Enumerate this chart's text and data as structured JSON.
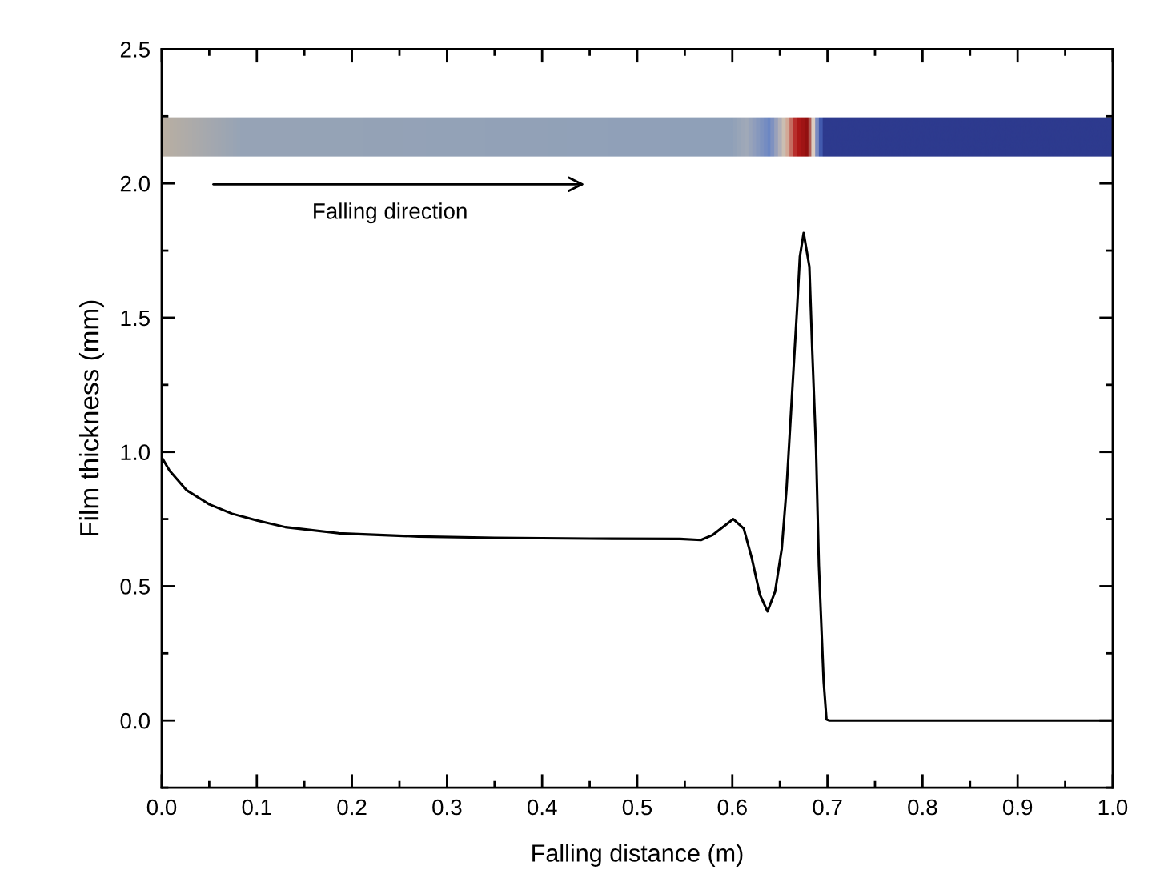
{
  "chart_data": {
    "type": "line",
    "xlabel": "Falling distance (m)",
    "ylabel": "Film thickness (mm)",
    "annotations": [
      "Falling direction"
    ],
    "x": [
      0.0,
      0.0084,
      0.026,
      0.05,
      0.074,
      0.1,
      0.13,
      0.186,
      0.27,
      0.35,
      0.45,
      0.545,
      0.567,
      0.579,
      0.601,
      0.612,
      0.6205,
      0.629,
      0.637,
      0.645,
      0.652,
      0.657,
      0.6625,
      0.668,
      0.671,
      0.675,
      0.681,
      0.684,
      0.688,
      0.691,
      0.696,
      0.699,
      0.702,
      0.8,
      0.9,
      1.0
    ],
    "series": [
      {
        "color": "#000000",
        "values": [
          0.98,
          0.93,
          0.858,
          0.805,
          0.77,
          0.745,
          0.72,
          0.697,
          0.685,
          0.68,
          0.677,
          0.676,
          0.672,
          0.69,
          0.75,
          0.715,
          0.604,
          0.468,
          0.406,
          0.48,
          0.64,
          0.864,
          1.198,
          1.53,
          1.728,
          1.816,
          1.69,
          1.38,
          1.01,
          0.578,
          0.146,
          0.004,
          0.0,
          0.0,
          0.0,
          0.0
        ]
      }
    ],
    "xlim": [
      0.0,
      1.0
    ],
    "ylim": [
      -0.25,
      2.5
    ],
    "xticks": [
      {
        "value": 0,
        "label": "0.0"
      },
      0.1,
      0.2,
      0.3,
      0.4,
      0.5,
      0.6,
      0.7,
      0.8,
      0.9,
      {
        "value": 1,
        "label": "1.0"
      }
    ],
    "yticks": [
      {
        "value": 0,
        "label": "0.0"
      },
      0.5,
      {
        "value": 1,
        "label": "1.0"
      },
      1.5,
      {
        "value": 2,
        "label": "2.0"
      },
      2.5
    ],
    "grid": false,
    "legend": false,
    "marker": "none",
    "line_style": "solid"
  }
}
